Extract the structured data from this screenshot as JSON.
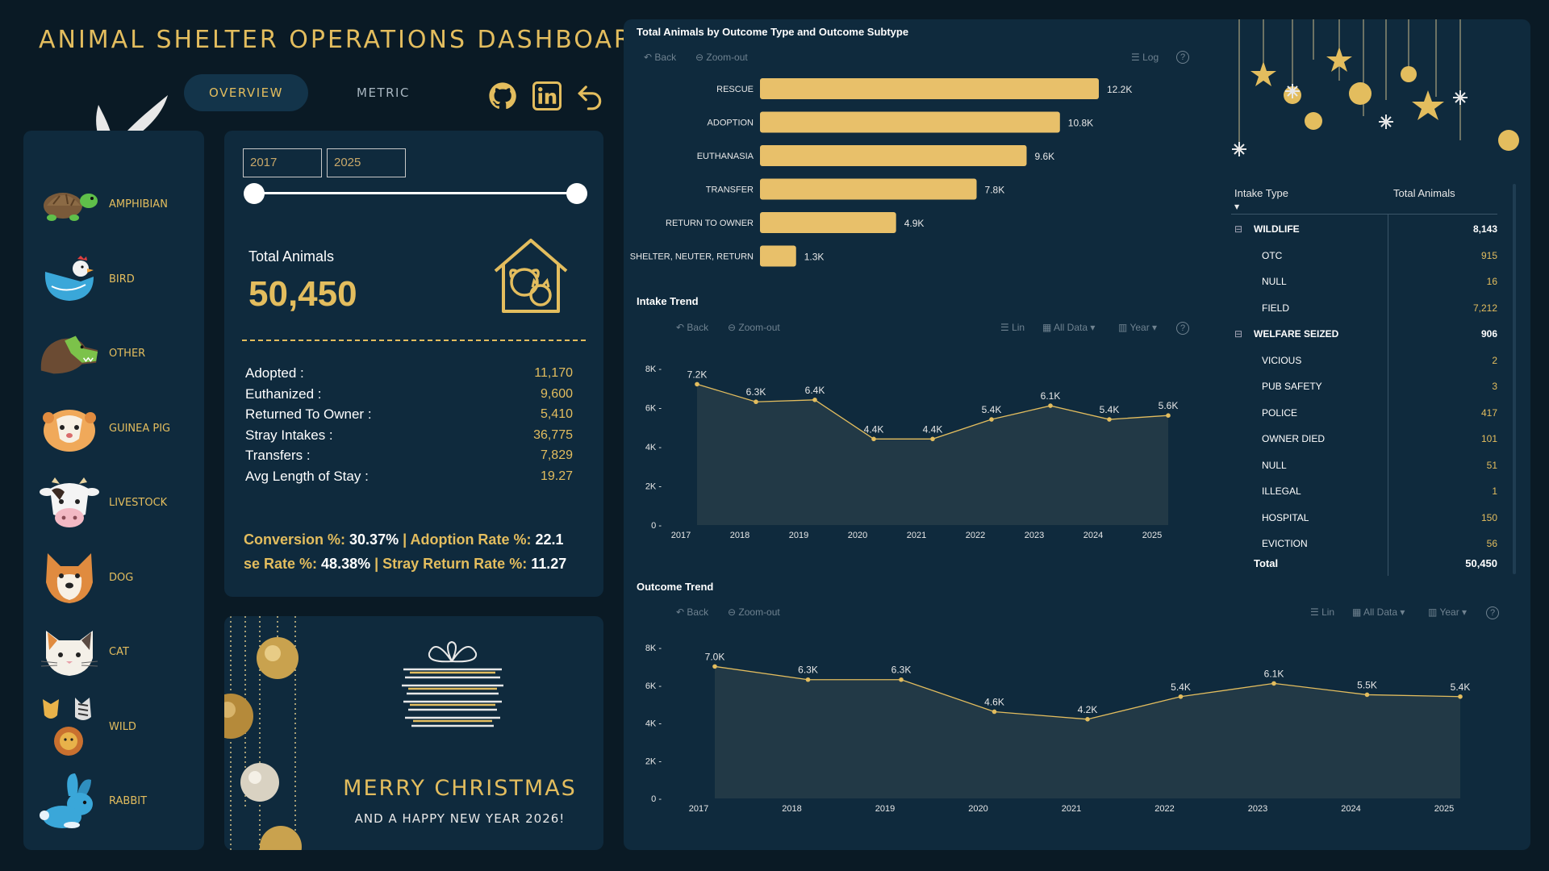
{
  "header": {
    "title": "ANIMAL SHELTER OPERATIONS DASHBOARD"
  },
  "tabs": [
    {
      "label": "OVERVIEW"
    },
    {
      "label": "METRIC"
    }
  ],
  "sidebar": {
    "items": [
      {
        "label": "AMPHIBIAN",
        "icon": "turtle-icon"
      },
      {
        "label": "BIRD",
        "icon": "bird-icon"
      },
      {
        "label": "OTHER",
        "icon": "dinosaur-icon"
      },
      {
        "label": "GUINEA PIG",
        "icon": "guinea-pig-icon"
      },
      {
        "label": "LIVESTOCK",
        "icon": "cow-icon"
      },
      {
        "label": "DOG",
        "icon": "dog-icon"
      },
      {
        "label": "CAT",
        "icon": "cat-icon"
      },
      {
        "label": "WILD",
        "icon": "wild-animals-icon"
      },
      {
        "label": "RABBIT",
        "icon": "rabbit-icon"
      }
    ]
  },
  "filters": {
    "year_start": "2017",
    "year_end": "2025"
  },
  "kpi": {
    "total_label": "Total Animals",
    "total_value": "50,450",
    "stats": [
      {
        "label": "Adopted :",
        "value": "11,170"
      },
      {
        "label": "Euthanized :",
        "value": "9,600"
      },
      {
        "label": "Returned To Owner :",
        "value": "5,410"
      },
      {
        "label": "Stray Intakes :",
        "value": "36,775"
      },
      {
        "label": "Transfers :",
        "value": "7,829"
      },
      {
        "label": "Avg Length of Stay :",
        "value": "19.27"
      }
    ],
    "ticker1": [
      {
        "label": "Conversion %: ",
        "value": "30.37%"
      },
      {
        "label": " | Adoption Rate %: ",
        "value": "22.1"
      }
    ],
    "ticker2": [
      {
        "label": "se Rate %: ",
        "value": "48.38%"
      },
      {
        "label": " | Stray Return Rate %: ",
        "value": "11.27"
      }
    ]
  },
  "greeting": {
    "line1": "MERRY CHRISTMAS",
    "line2": "AND A HAPPY NEW YEAR 2026!"
  },
  "toolbar": {
    "back": "Back",
    "zoom_out": "Zoom-out",
    "log": "Log",
    "lin": "Lin",
    "all_data": "All Data",
    "year": "Year"
  },
  "chart_data": [
    {
      "type": "bar",
      "title": "Total Animals by Outcome Type and Outcome Subtype",
      "categories": [
        "RESCUE",
        "ADOPTION",
        "EUTHANASIA",
        "TRANSFER",
        "RETURN TO OWNER",
        "SHELTER, NEUTER, RETURN"
      ],
      "values": [
        12200,
        10800,
        9600,
        7800,
        4900,
        1300
      ],
      "labels": [
        "12.2K",
        "10.8K",
        "9.6K",
        "7.8K",
        "4.9K",
        "1.3K"
      ],
      "orientation": "horizontal",
      "color": "#e8c06a"
    },
    {
      "type": "area",
      "title": "Intake Trend",
      "x": [
        "2017",
        "2018",
        "2019",
        "2020",
        "2021",
        "2022",
        "2023",
        "2024",
        "2025"
      ],
      "values": [
        7200,
        6300,
        6400,
        4400,
        4400,
        5400,
        6100,
        5400,
        5600
      ],
      "labels": [
        "7.2K",
        "6.3K",
        "6.4K",
        "4.4K",
        "4.4K",
        "5.4K",
        "6.1K",
        "5.4K",
        "5.6K"
      ],
      "yticks": [
        "0",
        "2K",
        "4K",
        "6K",
        "8K"
      ],
      "ylim": [
        0,
        8000
      ]
    },
    {
      "type": "area",
      "title": "Outcome Trend",
      "x": [
        "2017",
        "2018",
        "2019",
        "2020",
        "2021",
        "2022",
        "2023",
        "2024",
        "2025"
      ],
      "values": [
        7000,
        6300,
        6300,
        4600,
        4200,
        5400,
        6100,
        5500,
        5400
      ],
      "labels": [
        "7.0K",
        "6.3K",
        "6.3K",
        "4.6K",
        "4.2K",
        "5.4K",
        "6.1K",
        "5.5K",
        "5.4K"
      ],
      "yticks": [
        "0",
        "2K",
        "4K",
        "6K",
        "8K"
      ],
      "ylim": [
        0,
        8000
      ]
    }
  ],
  "matrix": {
    "headers": [
      "Intake Type",
      "Total Animals"
    ],
    "rows": [
      {
        "label": "WILDLIFE",
        "value": "8,143",
        "group": true
      },
      {
        "label": "OTC",
        "value": "915"
      },
      {
        "label": "NULL",
        "value": "16"
      },
      {
        "label": "FIELD",
        "value": "7,212"
      },
      {
        "label": "WELFARE SEIZED",
        "value": "906",
        "group": true
      },
      {
        "label": "VICIOUS",
        "value": "2"
      },
      {
        "label": "PUB SAFETY",
        "value": "3"
      },
      {
        "label": "POLICE",
        "value": "417"
      },
      {
        "label": "OWNER DIED",
        "value": "101"
      },
      {
        "label": "NULL",
        "value": "51"
      },
      {
        "label": "ILLEGAL",
        "value": "1"
      },
      {
        "label": "HOSPITAL",
        "value": "150"
      },
      {
        "label": "EVICTION",
        "value": "56"
      }
    ],
    "total": {
      "label": "Total",
      "value": "50,450"
    }
  },
  "colors": {
    "gold": "#e3bd5e",
    "bar": "#e8c06a",
    "panel": "#0f2a3d",
    "bg": "#0a1a25"
  }
}
